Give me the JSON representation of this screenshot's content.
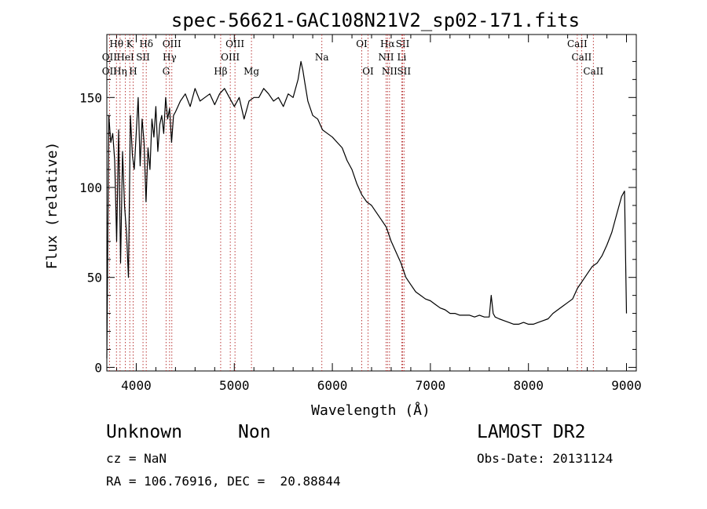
{
  "chart_data": {
    "type": "line",
    "title": "spec-56621-GAC108N21V2_sp02-171.fits",
    "xlabel": "Wavelength (Å)",
    "ylabel": "Flux (relative)",
    "xlim": [
      3700,
      9100
    ],
    "ylim": [
      -2,
      185
    ],
    "xticks": [
      4000,
      5000,
      6000,
      7000,
      8000,
      9000
    ],
    "yticks": [
      0,
      50,
      100,
      150
    ],
    "series": [
      {
        "x": [
          3700,
          3720,
          3740,
          3760,
          3780,
          3800,
          3820,
          3840,
          3860,
          3880,
          3900,
          3920,
          3940,
          3960,
          3980,
          4000,
          4020,
          4040,
          4060,
          4080,
          4100,
          4120,
          4140,
          4160,
          4180,
          4200,
          4220,
          4240,
          4260,
          4280,
          4300,
          4320,
          4340,
          4360,
          4380,
          4400,
          4450,
          4500,
          4550,
          4600,
          4650,
          4700,
          4750,
          4800,
          4850,
          4900,
          4950,
          5000,
          5050,
          5100,
          5150,
          5200,
          5250,
          5300,
          5350,
          5400,
          5450,
          5500,
          5550,
          5600,
          5650,
          5680,
          5700,
          5720,
          5750,
          5800,
          5850,
          5900,
          5950,
          6000,
          6050,
          6100,
          6150,
          6200,
          6250,
          6300,
          6350,
          6400,
          6450,
          6500,
          6550,
          6600,
          6650,
          6700,
          6750,
          6800,
          6850,
          6900,
          6950,
          7000,
          7050,
          7100,
          7150,
          7200,
          7250,
          7300,
          7350,
          7400,
          7450,
          7500,
          7550,
          7600,
          7620,
          7640,
          7660,
          7700,
          7750,
          7800,
          7850,
          7900,
          7950,
          8000,
          8050,
          8100,
          8150,
          8200,
          8250,
          8300,
          8350,
          8400,
          8450,
          8500,
          8550,
          8600,
          8650,
          8700,
          8750,
          8800,
          8850,
          8900,
          8950,
          8980,
          9000
        ],
        "y": [
          5,
          140,
          125,
          130,
          115,
          70,
          132,
          58,
          120,
          90,
          75,
          50,
          140,
          118,
          110,
          130,
          150,
          112,
          138,
          125,
          92,
          122,
          110,
          138,
          128,
          145,
          120,
          135,
          140,
          130,
          150,
          138,
          144,
          125,
          140,
          142,
          148,
          152,
          145,
          155,
          148,
          150,
          152,
          146,
          152,
          155,
          150,
          145,
          150,
          138,
          148,
          150,
          150,
          155,
          152,
          148,
          150,
          145,
          152,
          150,
          160,
          170,
          165,
          158,
          148,
          140,
          138,
          132,
          130,
          128,
          125,
          122,
          115,
          110,
          102,
          96,
          92,
          90,
          86,
          82,
          78,
          70,
          64,
          58,
          50,
          46,
          42,
          40,
          38,
          37,
          35,
          33,
          32,
          30,
          30,
          29,
          29,
          29,
          28,
          29,
          28,
          28,
          40,
          30,
          28,
          27,
          26,
          25,
          24,
          24,
          25,
          24,
          24,
          25,
          26,
          27,
          30,
          32,
          34,
          36,
          38,
          44,
          48,
          52,
          56,
          58,
          62,
          68,
          75,
          85,
          95,
          98,
          30
        ]
      }
    ],
    "lines": {
      "top": [
        {
          "label": "Hθ",
          "x": 3798
        },
        {
          "label": "K",
          "x": 3934
        },
        {
          "label": "Hδ",
          "x": 4102
        },
        {
          "label": "OIII",
          "x": 4363
        },
        {
          "label": "OIII",
          "x": 5007
        },
        {
          "label": "OI",
          "x": 6300
        },
        {
          "label": "Hα",
          "x": 6563
        },
        {
          "label": "SII",
          "x": 6717
        },
        {
          "label": "CaII",
          "x": 8498
        }
      ],
      "mid": [
        {
          "label": "OII",
          "x": 3727
        },
        {
          "label": "HeI",
          "x": 3889
        },
        {
          "label": "SII",
          "x": 4069
        },
        {
          "label": "Hγ",
          "x": 4340
        },
        {
          "label": "OIII",
          "x": 4959
        },
        {
          "label": "Na",
          "x": 5893
        },
        {
          "label": "NII",
          "x": 6548
        },
        {
          "label": "Li",
          "x": 6708
        },
        {
          "label": "CaII",
          "x": 8542
        }
      ],
      "low": [
        {
          "label": "OII",
          "x": 3727
        },
        {
          "label": "Hη",
          "x": 3835
        },
        {
          "label": "H",
          "x": 3968
        },
        {
          "label": "G",
          "x": 4304
        },
        {
          "label": "Hβ",
          "x": 4861
        },
        {
          "label": "Mg",
          "x": 5175
        },
        {
          "label": "OI",
          "x": 6364
        },
        {
          "label": "NII",
          "x": 6583
        },
        {
          "label": "SII",
          "x": 6731
        },
        {
          "label": "CaII",
          "x": 8662
        }
      ]
    }
  },
  "info": {
    "class": "Unknown",
    "subclass": "Non",
    "survey": "LAMOST DR2",
    "cz": "cz = NaN",
    "obs_date": "Obs-Date: 20131124",
    "coords": "RA = 106.76916, DEC =  20.88844"
  }
}
